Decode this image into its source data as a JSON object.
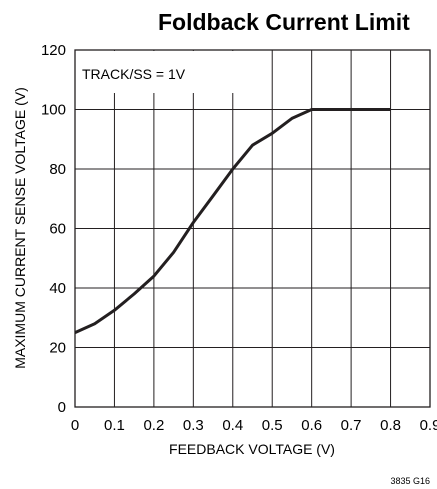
{
  "chart_data": {
    "type": "line",
    "title": "Foldback Current Limit",
    "xlabel": "FEEDBACK VOLTAGE (V)",
    "ylabel": "MAXIMUM CURRENT SENSE VOLTAGE (V)",
    "xlim": [
      0,
      0.9
    ],
    "ylim": [
      0,
      120
    ],
    "x_ticks": [
      "0",
      "0.1",
      "0.2",
      "0.3",
      "0.4",
      "0.5",
      "0.6",
      "0.7",
      "0.8",
      "0.9"
    ],
    "y_ticks": [
      "0",
      "20",
      "40",
      "60",
      "80",
      "100",
      "120"
    ],
    "grid": true,
    "annotation": "TRACK/SS = 1V",
    "figure_id": "3835 G16",
    "series": [
      {
        "x": [
          0,
          0.05,
          0.1,
          0.15,
          0.2,
          0.25,
          0.3,
          0.35,
          0.4,
          0.45,
          0.5,
          0.55,
          0.6,
          0.62,
          0.7,
          0.8
        ],
        "y": [
          25,
          28,
          32.5,
          38,
          44,
          52,
          62,
          71,
          80,
          88,
          92,
          97,
          100,
          100,
          100,
          100
        ]
      }
    ]
  }
}
